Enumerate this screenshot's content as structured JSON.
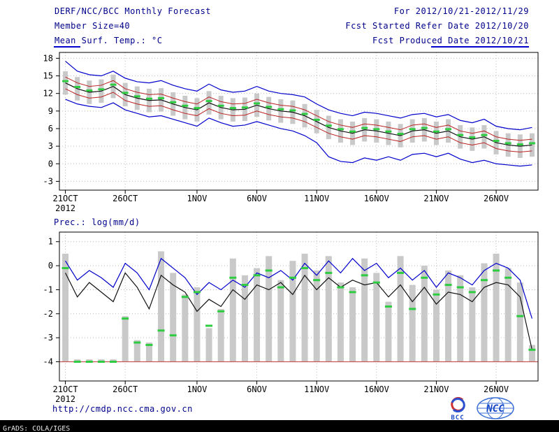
{
  "header": {
    "left": [
      "DERF/NCC/BCC Monthly Forecast",
      "Member Size=40",
      "Mean Surf. Temp.: °C"
    ],
    "right": [
      "For 2012/10/21-2012/11/29",
      "Fcst Started Refer Date 2012/10/20",
      "Fcst Produced Date 2012/10/21"
    ]
  },
  "footer": {
    "url": "http://cmdp.ncc.cma.gov.cn",
    "grads_credit": "GrADS: COLA/IGES",
    "logos": [
      {
        "name": "bcc-logo",
        "label": "BCC"
      },
      {
        "name": "ncc-logo",
        "label": "NCC"
      }
    ]
  },
  "colors": {
    "header_text": "#00008b",
    "axis_text": "#000000",
    "grid": "#bdbdbd",
    "bar_fill": "#c9c9c9",
    "envelope_line": "#0000cc",
    "quartile_line": "#bb2222",
    "mean_line": "#111111",
    "median_marker": "#2ecc40",
    "precip_baseline": "#cc5555",
    "statusbar_bg": "#000000",
    "statusbar_text": "#e8e8e8"
  },
  "chart_data": [
    {
      "type": "line",
      "subtype": "ensemble-plume",
      "title": "Mean Surf. Temp.: °C",
      "xlabel": "",
      "ylabel": "°C",
      "n_points": 40,
      "x_start_date": "21OCT2012",
      "x_end_date": "29NOV2012",
      "year_label": "2012",
      "ylim": [
        -4.5,
        19
      ],
      "y_ticks": [
        18,
        15,
        12,
        9,
        6,
        3,
        0,
        -3
      ],
      "grid": true,
      "x_ticks": [
        {
          "label": "21OCT",
          "day": 0
        },
        {
          "label": "26OCT",
          "day": 5
        },
        {
          "label": "1NOV",
          "day": 11
        },
        {
          "label": "6NOV",
          "day": 16
        },
        {
          "label": "11NOV",
          "day": 21
        },
        {
          "label": "16NOV",
          "day": 26
        },
        {
          "label": "21NOV",
          "day": 31
        },
        {
          "label": "26NOV",
          "day": 36
        }
      ],
      "series": [
        {
          "name": "member-spread-bar",
          "style": "bar-range",
          "color": "#c9c9c9",
          "low": [
            11.8,
            10.8,
            10.2,
            10.4,
            11.2,
            9.8,
            9.2,
            8.8,
            8.9,
            8.2,
            7.6,
            7.2,
            8.4,
            7.6,
            7.2,
            7.3,
            8.0,
            7.4,
            7.0,
            6.8,
            6.2,
            5.2,
            4.2,
            3.6,
            3.2,
            3.8,
            3.6,
            3.2,
            2.8,
            3.6,
            3.8,
            3.2,
            3.6,
            2.6,
            2.2,
            2.6,
            1.6,
            1.2,
            1.0,
            1.2
          ],
          "high": [
            15.8,
            14.8,
            14.2,
            14.4,
            15.2,
            13.8,
            13.2,
            12.8,
            12.9,
            12.2,
            11.6,
            11.2,
            12.4,
            11.6,
            11.2,
            11.3,
            12.0,
            11.4,
            11.0,
            10.8,
            10.2,
            9.2,
            8.2,
            7.6,
            7.2,
            7.8,
            7.6,
            7.2,
            6.8,
            7.6,
            7.8,
            7.2,
            7.6,
            6.6,
            6.2,
            6.6,
            5.6,
            5.2,
            5.0,
            5.2
          ]
        },
        {
          "name": "ensemble-max",
          "style": "line",
          "color": "#0000cc",
          "width": 1.2,
          "values": [
            17.5,
            15.8,
            15.2,
            15.0,
            15.8,
            14.6,
            14.0,
            13.8,
            14.2,
            13.4,
            12.8,
            12.4,
            13.6,
            12.6,
            12.2,
            12.4,
            13.2,
            12.4,
            12.0,
            11.8,
            11.4,
            10.2,
            9.2,
            8.6,
            8.2,
            8.8,
            8.6,
            8.2,
            7.8,
            8.4,
            8.6,
            8.0,
            8.4,
            7.4,
            7.0,
            7.6,
            6.4,
            6.0,
            5.8,
            6.2
          ]
        },
        {
          "name": "ensemble-min",
          "style": "line",
          "color": "#0000cc",
          "width": 1.2,
          "values": [
            11.0,
            10.2,
            9.8,
            9.6,
            10.4,
            9.2,
            8.6,
            8.0,
            8.2,
            7.6,
            7.0,
            6.4,
            7.8,
            7.0,
            6.4,
            6.6,
            7.2,
            6.6,
            6.0,
            5.6,
            4.8,
            3.6,
            1.2,
            0.4,
            0.2,
            1.0,
            0.6,
            1.2,
            0.6,
            1.6,
            1.8,
            1.2,
            1.8,
            0.8,
            0.2,
            0.6,
            0.0,
            -0.2,
            -0.4,
            -0.2
          ]
        },
        {
          "name": "upper-quartile",
          "style": "line",
          "color": "#bb2222",
          "width": 1,
          "values": [
            14.8,
            13.8,
            13.2,
            13.4,
            14.2,
            12.8,
            12.2,
            11.8,
            11.9,
            11.2,
            10.6,
            10.2,
            11.4,
            10.6,
            10.2,
            10.3,
            11.0,
            10.4,
            10.0,
            9.8,
            9.2,
            8.2,
            7.2,
            6.6,
            6.2,
            6.8,
            6.6,
            6.2,
            5.8,
            6.6,
            6.8,
            6.2,
            6.6,
            5.6,
            5.2,
            5.6,
            4.6,
            4.2,
            4.0,
            4.2
          ]
        },
        {
          "name": "lower-quartile",
          "style": "line",
          "color": "#bb2222",
          "width": 1,
          "values": [
            12.8,
            11.8,
            11.2,
            11.4,
            12.2,
            10.8,
            10.2,
            9.8,
            9.9,
            9.2,
            8.6,
            8.2,
            9.4,
            8.6,
            8.2,
            8.3,
            9.0,
            8.4,
            8.0,
            7.8,
            7.2,
            6.2,
            5.2,
            4.6,
            4.2,
            4.8,
            4.6,
            4.2,
            3.8,
            4.6,
            4.8,
            4.2,
            4.6,
            3.6,
            3.2,
            3.6,
            2.6,
            2.2,
            2.0,
            2.2
          ]
        },
        {
          "name": "ensemble-mean",
          "style": "line",
          "color": "#111111",
          "width": 1.2,
          "values": [
            13.8,
            12.8,
            12.2,
            12.4,
            13.2,
            11.8,
            11.2,
            10.8,
            10.9,
            10.2,
            9.6,
            9.2,
            10.4,
            9.6,
            9.2,
            9.3,
            10.0,
            9.4,
            9.0,
            8.8,
            8.2,
            7.2,
            6.2,
            5.6,
            5.2,
            5.8,
            5.6,
            5.2,
            4.8,
            5.6,
            5.8,
            5.2,
            5.6,
            4.6,
            4.2,
            4.6,
            3.6,
            3.2,
            3.0,
            3.2
          ]
        },
        {
          "name": "ensemble-median",
          "style": "dash-markers",
          "color": "#2ecc40",
          "values": [
            14.1,
            13.1,
            12.5,
            12.7,
            13.5,
            12.1,
            11.5,
            11.1,
            11.2,
            10.5,
            9.9,
            9.5,
            10.7,
            9.9,
            9.5,
            9.6,
            10.3,
            9.7,
            9.3,
            9.1,
            8.5,
            7.5,
            6.5,
            5.9,
            5.5,
            6.1,
            5.9,
            5.5,
            5.1,
            5.9,
            6.1,
            5.5,
            5.9,
            4.9,
            4.5,
            4.9,
            3.9,
            3.5,
            3.3,
            3.5
          ]
        }
      ]
    },
    {
      "type": "bar",
      "subtype": "ensemble-plume",
      "title": "Prec.: log(mm/d)",
      "xlabel": "",
      "ylabel": "log(mm/d)",
      "n_points": 40,
      "x_start_date": "21OCT2012",
      "x_end_date": "29NOV2012",
      "year_label": "2012",
      "ylim": [
        -4.8,
        1.4
      ],
      "y_ticks": [
        1,
        0,
        -1,
        -2,
        -3,
        -4
      ],
      "grid": true,
      "baseline": -4,
      "x_ticks": [
        {
          "label": "21OCT",
          "day": 0
        },
        {
          "label": "26OCT",
          "day": 5
        },
        {
          "label": "1NOV",
          "day": 11
        },
        {
          "label": "6NOV",
          "day": 16
        },
        {
          "label": "11NOV",
          "day": 21
        },
        {
          "label": "16NOV",
          "day": 26
        },
        {
          "label": "21NOV",
          "day": 31
        },
        {
          "label": "26NOV",
          "day": 36
        }
      ],
      "series": [
        {
          "name": "member-spread-bar",
          "style": "bar",
          "color": "#c9c9c9",
          "base": -4,
          "values": [
            0.5,
            -3.9,
            -3.9,
            -3.9,
            -3.9,
            -2.1,
            -3.1,
            -3.2,
            0.6,
            -0.3,
            -1.2,
            -0.9,
            -2.6,
            -1.8,
            0.3,
            -0.4,
            -0.1,
            0.4,
            -0.6,
            0.2,
            0.5,
            -0.2,
            0.4,
            -0.7,
            -0.9,
            0.3,
            -0.3,
            -1.5,
            0.4,
            -0.8,
            0.0,
            -1.0,
            -0.2,
            -0.4,
            -0.9,
            0.1,
            0.5,
            -0.1,
            -0.7,
            -3.3
          ]
        },
        {
          "name": "dry-baseline",
          "style": "hline",
          "color": "#cc5555",
          "value": -4
        },
        {
          "name": "upper-envelope",
          "style": "line",
          "color": "#0000cc",
          "width": 1.2,
          "values": [
            0.2,
            -0.6,
            -0.2,
            -0.5,
            -0.9,
            0.1,
            -0.3,
            -1.0,
            0.3,
            -0.1,
            -0.5,
            -1.2,
            -0.7,
            -1.0,
            -0.6,
            -0.9,
            -0.3,
            -0.5,
            -0.2,
            -0.6,
            0.1,
            -0.4,
            0.2,
            -0.3,
            0.3,
            -0.2,
            0.1,
            -0.5,
            -0.1,
            -0.6,
            -0.2,
            -0.9,
            -0.3,
            -0.5,
            -0.8,
            -0.2,
            0.1,
            -0.1,
            -0.6,
            -2.2
          ]
        },
        {
          "name": "ensemble-mean",
          "style": "line",
          "color": "#111111",
          "width": 1.2,
          "values": [
            -0.3,
            -1.3,
            -0.7,
            -1.1,
            -1.5,
            -0.3,
            -0.9,
            -1.8,
            -0.4,
            -0.8,
            -1.1,
            -1.9,
            -1.4,
            -1.7,
            -1.0,
            -1.4,
            -0.8,
            -1.0,
            -0.7,
            -1.2,
            -0.4,
            -1.0,
            -0.5,
            -0.9,
            -0.6,
            -0.8,
            -0.7,
            -1.3,
            -0.8,
            -1.5,
            -0.9,
            -1.6,
            -1.1,
            -1.2,
            -1.5,
            -0.9,
            -0.7,
            -0.8,
            -1.3,
            -3.5
          ]
        },
        {
          "name": "ensemble-median",
          "style": "dash-markers",
          "color": "#2ecc40",
          "values": [
            -0.1,
            -4.0,
            -4.0,
            -4.0,
            -4.0,
            -2.2,
            -3.2,
            -3.3,
            -2.7,
            -2.9,
            -1.3,
            -1.1,
            -2.5,
            -1.9,
            -0.5,
            -0.8,
            -0.4,
            -0.2,
            -0.9,
            -0.5,
            -0.1,
            -0.6,
            -0.3,
            -0.9,
            -1.1,
            -0.4,
            -0.7,
            -1.7,
            -0.3,
            -1.8,
            -0.5,
            -1.2,
            -0.8,
            -0.9,
            -1.1,
            -0.6,
            -0.2,
            -0.5,
            -2.1,
            -3.5
          ]
        }
      ]
    }
  ]
}
